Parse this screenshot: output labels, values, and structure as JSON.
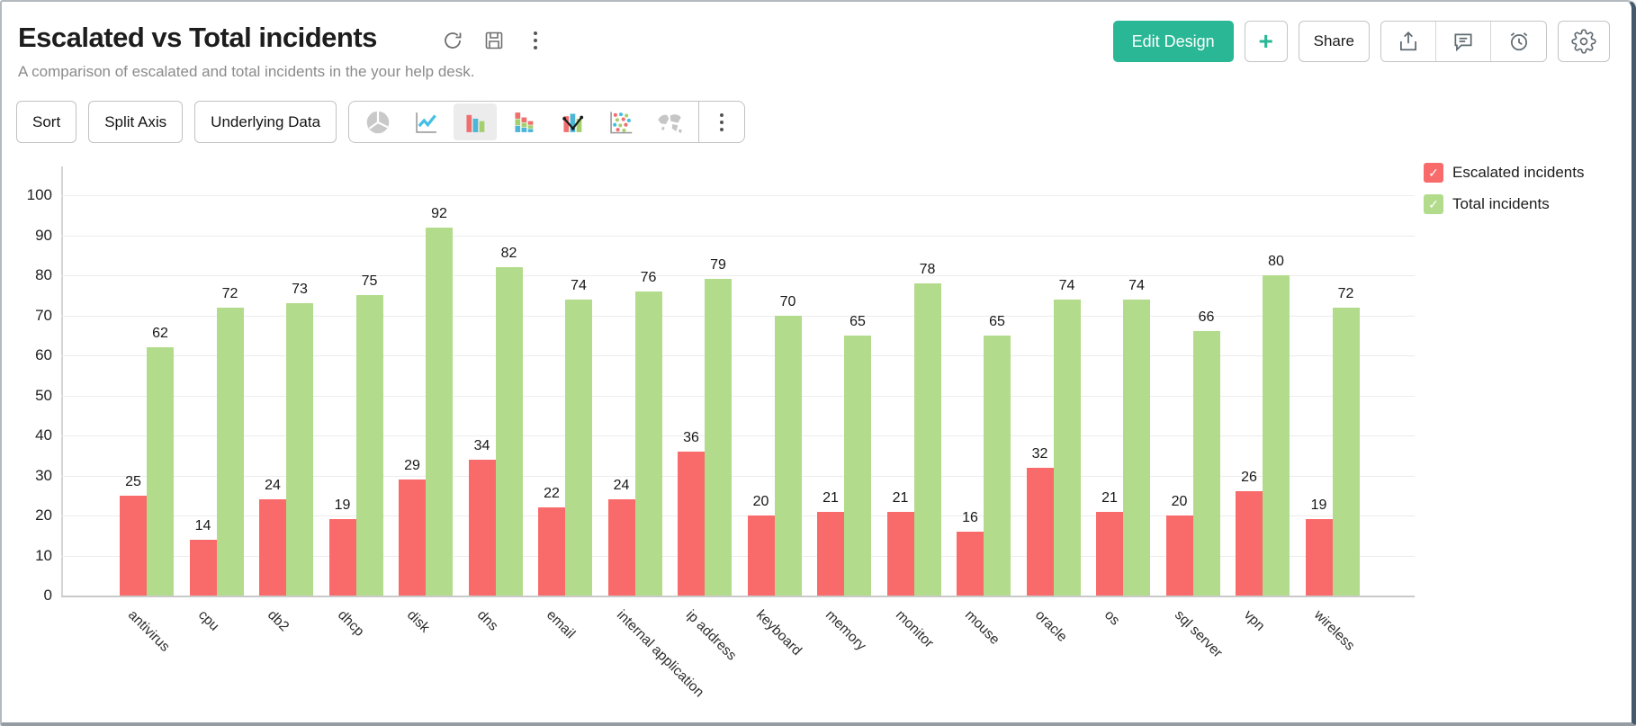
{
  "header": {
    "title": "Escalated vs Total incidents",
    "subtitle": "A comparison of escalated and total incidents in the your help desk.",
    "title_icons": [
      "refresh-icon",
      "save-icon",
      "kebab-menu-icon"
    ],
    "actions": {
      "edit_design_label": "Edit Design",
      "add_label": "+",
      "share_label": "Share",
      "action_icons": [
        "export-icon",
        "comment-icon",
        "alarm-icon",
        "settings-icon"
      ]
    }
  },
  "toolbar": {
    "buttons": [
      "Sort",
      "Split Axis",
      "Underlying Data"
    ],
    "chart_type_icons": [
      "pie-chart-icon",
      "line-chart-icon",
      "bar-chart-icon",
      "stacked-bar-chart-icon",
      "combo-chart-icon",
      "scatter-chart-icon",
      "map-chart-icon",
      "more-chart-types-icon"
    ],
    "selected_chart_type": "bar"
  },
  "legend": [
    {
      "label": "Escalated incidents",
      "color": "#f96b6b",
      "checked": true
    },
    {
      "label": "Total incidents",
      "color": "#b2dc8b",
      "checked": true
    }
  ],
  "chart_data": {
    "type": "bar",
    "title": "Escalated vs Total incidents",
    "xlabel": "",
    "ylabel": "",
    "ylim": [
      0,
      100
    ],
    "yticks": [
      0,
      10,
      20,
      30,
      40,
      50,
      60,
      70,
      80,
      90,
      100
    ],
    "grid": true,
    "legend_position": "top-right",
    "categories": [
      "antivirus",
      "cpu",
      "db2",
      "dhcp",
      "disk",
      "dns",
      "email",
      "internal application",
      "ip address",
      "keyboard",
      "memory",
      "monitor",
      "mouse",
      "oracle",
      "os",
      "sql server",
      "vpn",
      "wireless"
    ],
    "series": [
      {
        "name": "Escalated incidents",
        "color": "#f96b6b",
        "values": [
          25,
          14,
          24,
          19,
          29,
          34,
          22,
          24,
          36,
          20,
          21,
          21,
          16,
          32,
          21,
          20,
          26,
          19
        ]
      },
      {
        "name": "Total incidents",
        "color": "#b2dc8b",
        "values": [
          62,
          72,
          73,
          75,
          92,
          82,
          74,
          76,
          79,
          70,
          65,
          78,
          65,
          74,
          74,
          66,
          80,
          72
        ]
      }
    ]
  },
  "colors": {
    "accent_teal": "#29b795",
    "bar_red": "#f96b6b",
    "bar_green": "#b2dc8b",
    "grid": "#ececec"
  }
}
